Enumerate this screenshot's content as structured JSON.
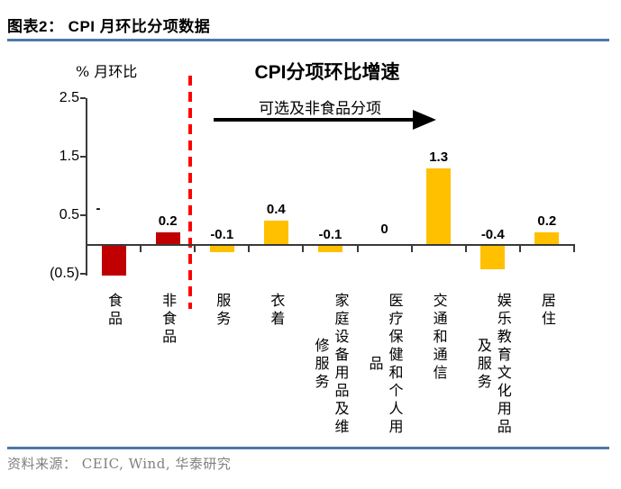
{
  "header": {
    "title": "图表2：  CPI 月环比分项数据"
  },
  "colors": {
    "food_bars": "#C00000",
    "nonfood_bars": "#FFC000",
    "divider_line": "#FF0000",
    "rule_line": "#4E79A7",
    "source_text": "#808080",
    "axis_line": "#3a3a3a"
  },
  "chart_data": {
    "type": "bar",
    "title": "CPI分项环比增速",
    "ylabel": "% 月环比",
    "annotation": "可选及非食品分项",
    "ylim": [
      -0.5,
      2.5
    ],
    "grid": false,
    "legend": "none",
    "y_ticks": [
      {
        "label": "2.5",
        "value": 2.5
      },
      {
        "label": "1.5",
        "value": 1.5
      },
      {
        "label": "0.5",
        "value": 0.5
      },
      {
        "label": "(0.5)",
        "value": -0.5
      }
    ],
    "categories": [
      "食品",
      "非食品",
      "服务",
      "衣着",
      "家庭设备用品及维修服务",
      "医疗保健和个人用品",
      "交通和通信",
      "娱乐教育文化用品及服务",
      "居住"
    ],
    "values": [
      -0.5,
      0.2,
      -0.1,
      0.4,
      -0.1,
      0,
      1.3,
      -0.4,
      0.2
    ],
    "labels": [
      "-",
      "0.2",
      "-0.1",
      "0.4",
      "-0.1",
      "0",
      "1.3",
      "-0.4",
      "0.2"
    ],
    "bar_colors": [
      "#C00000",
      "#C00000",
      "#FFC000",
      "#FFC000",
      "#FFC000",
      "#FFC000",
      "#FFC000",
      "#FFC000",
      "#FFC000"
    ],
    "divider_after_category": "非食品"
  },
  "footer": {
    "source": "资料来源： CEIC, Wind, 华泰研究"
  }
}
